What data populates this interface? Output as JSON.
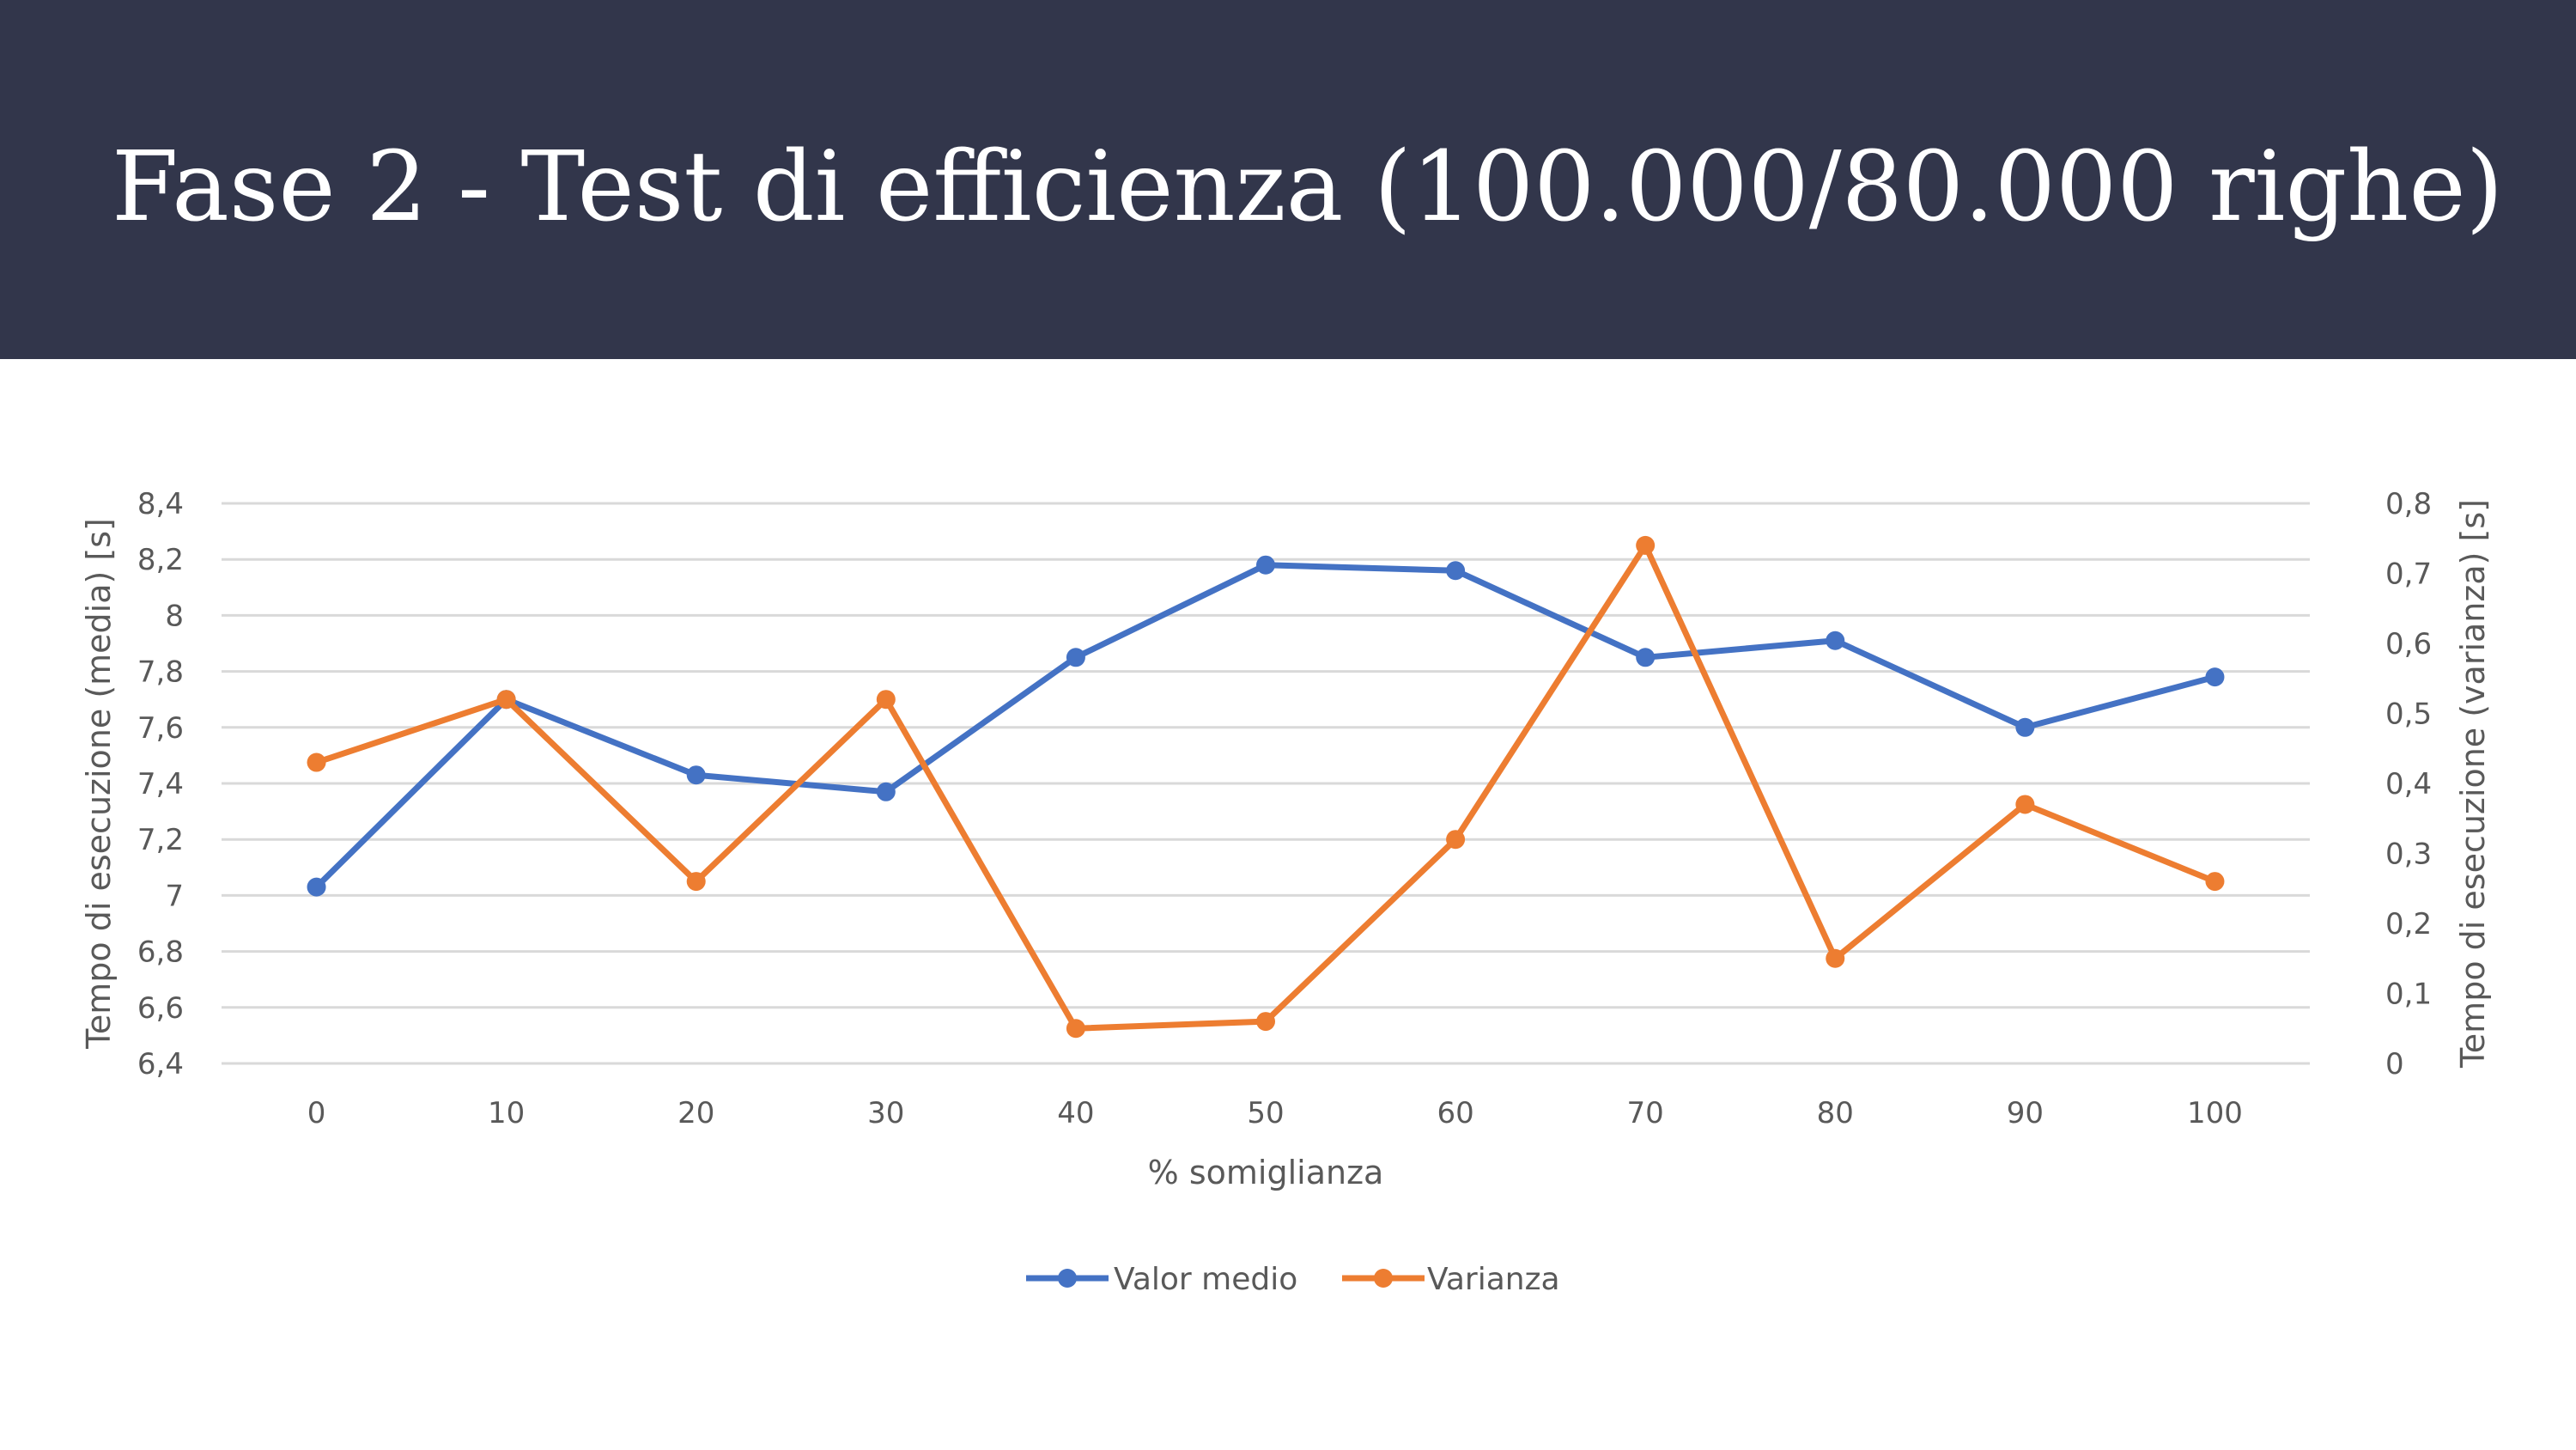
{
  "slide": {
    "title": "Fase 2 - Test di efficienza (100.000/80.000 righe)"
  },
  "colors": {
    "header_bg": "#32364b",
    "title_text": "#ffffff",
    "series_media": "#4472c4",
    "series_varianza": "#ed7d31",
    "grid": "#d9d9d9",
    "axis_text": "#595959"
  },
  "chart_data": {
    "type": "line",
    "title": "",
    "xlabel": "% somiglianza",
    "ylabel": "Tempo di esecuzione (media) [s]",
    "y2label": "Tempo di esecuzione (varianza) [s]",
    "x": [
      0,
      10,
      20,
      30,
      40,
      50,
      60,
      70,
      80,
      90,
      100
    ],
    "x_tick_labels": [
      "0",
      "10",
      "20",
      "30",
      "40",
      "50",
      "60",
      "70",
      "80",
      "90",
      "100"
    ],
    "ylim": [
      6.4,
      8.4
    ],
    "y_ticks": [
      "6,4",
      "6,6",
      "6,8",
      "7",
      "7,2",
      "7,4",
      "7,6",
      "7,8",
      "8",
      "8,2",
      "8,4"
    ],
    "y2lim": [
      0,
      0.8
    ],
    "y2_ticks": [
      "0",
      "0,1",
      "0,2",
      "0,3",
      "0,4",
      "0,5",
      "0,6",
      "0,7",
      "0,8"
    ],
    "grid": true,
    "legend_position": "bottom",
    "series": [
      {
        "name": "Valor medio",
        "axis": "left",
        "color": "#4472c4",
        "values": [
          7.03,
          7.7,
          7.43,
          7.37,
          7.85,
          8.18,
          8.16,
          7.85,
          7.91,
          7.6,
          7.78
        ]
      },
      {
        "name": "Varianza",
        "axis": "right",
        "color": "#ed7d31",
        "values": [
          0.43,
          0.52,
          0.26,
          0.52,
          0.05,
          0.06,
          0.32,
          0.74,
          0.15,
          0.37,
          0.26
        ]
      }
    ]
  }
}
